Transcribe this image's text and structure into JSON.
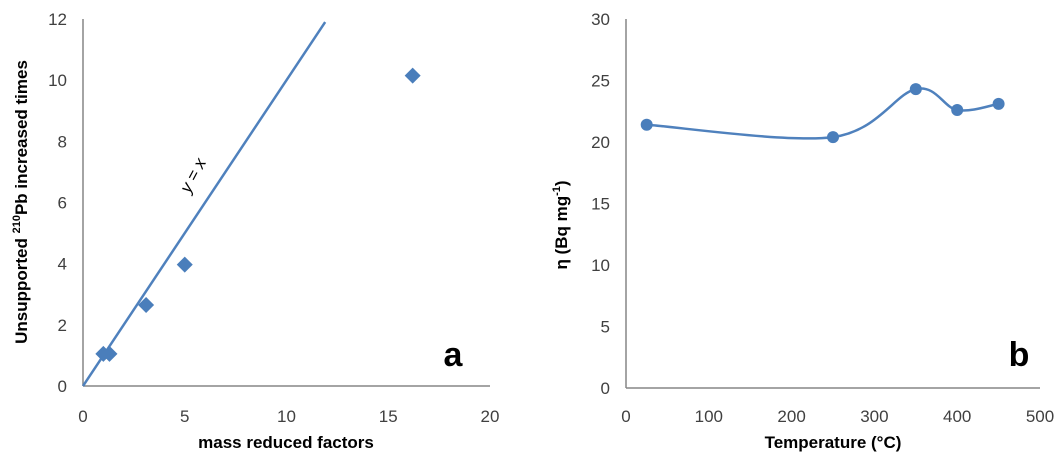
{
  "colors": {
    "series": "#4F81BD",
    "marker": "#4A7EBB",
    "axis": "#868686"
  },
  "chart_data": [
    {
      "type": "scatter",
      "panel_label": "a",
      "xlabel": "mass reduced factors",
      "ylabel_pre": "Unsupported ",
      "ylabel_sup": "210",
      "ylabel_post": "Pb increased times",
      "xlim": [
        0,
        20
      ],
      "ylim": [
        0,
        12
      ],
      "x_ticks": [
        "0",
        "5",
        "10",
        "15",
        "20"
      ],
      "y_ticks": [
        "0",
        "2",
        "4",
        "6",
        "8",
        "10",
        "12"
      ],
      "marker": "diamond",
      "series": [
        {
          "points": [
            {
              "x": 1.0,
              "y": 1.05
            },
            {
              "x": 1.3,
              "y": 1.05
            },
            {
              "x": 3.1,
              "y": 2.65
            },
            {
              "x": 5.0,
              "y": 3.97
            },
            {
              "x": 16.2,
              "y": 10.15
            }
          ]
        }
      ],
      "reference_line": {
        "label": "y = x",
        "x": [
          0,
          11.9
        ],
        "y": [
          0,
          11.9
        ]
      },
      "grid": false
    },
    {
      "type": "line",
      "panel_label": "b",
      "xlabel": "Temperature (°C)",
      "ylabel_pre": "η (Bq mg",
      "ylabel_sup": "-1",
      "ylabel_post": ")",
      "xlim": [
        0,
        500
      ],
      "ylim": [
        0,
        30
      ],
      "x_ticks": [
        "0",
        "100",
        "200",
        "300",
        "400",
        "500"
      ],
      "y_ticks": [
        "0",
        "5",
        "10",
        "15",
        "20",
        "25",
        "30"
      ],
      "smooth": true,
      "marker": "circle",
      "series": [
        {
          "points": [
            {
              "x": 25,
              "y": 21.4
            },
            {
              "x": 250,
              "y": 20.4
            },
            {
              "x": 350,
              "y": 24.3
            },
            {
              "x": 400,
              "y": 22.6
            },
            {
              "x": 450,
              "y": 23.1
            }
          ]
        }
      ],
      "grid": false
    }
  ]
}
